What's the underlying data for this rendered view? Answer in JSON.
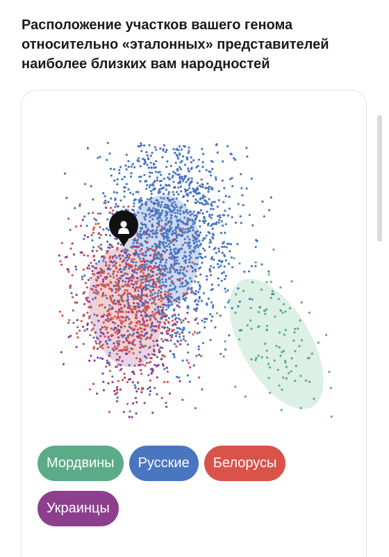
{
  "title": "Расположение участков вашего генома относительно «эталонных» представителей наиболее близких вам народностей",
  "chart_data": {
    "type": "scatter",
    "title": "",
    "xlabel": "",
    "ylabel": "",
    "grid": false,
    "legend_placement": "bottom",
    "marker": "person-pin-icon",
    "series": [
      {
        "name": "Мордвины",
        "color": "#5bab87",
        "fill": "#d6ede2"
      },
      {
        "name": "Русские",
        "color": "#4a76c0",
        "fill": "#c5d4ef"
      },
      {
        "name": "Белорусы",
        "color": "#d9534a",
        "fill": "#f2cfcc"
      },
      {
        "name": "Украинцы",
        "color": "#8d3f8e",
        "fill": "#e2cde2"
      }
    ]
  },
  "legend": [
    {
      "label": "Мордвины",
      "color": "#5bab87"
    },
    {
      "label": "Русские",
      "color": "#4a76c0"
    },
    {
      "label": "Белорусы",
      "color": "#d9534a"
    },
    {
      "label": "Украинцы",
      "color": "#8d3f8e"
    }
  ]
}
